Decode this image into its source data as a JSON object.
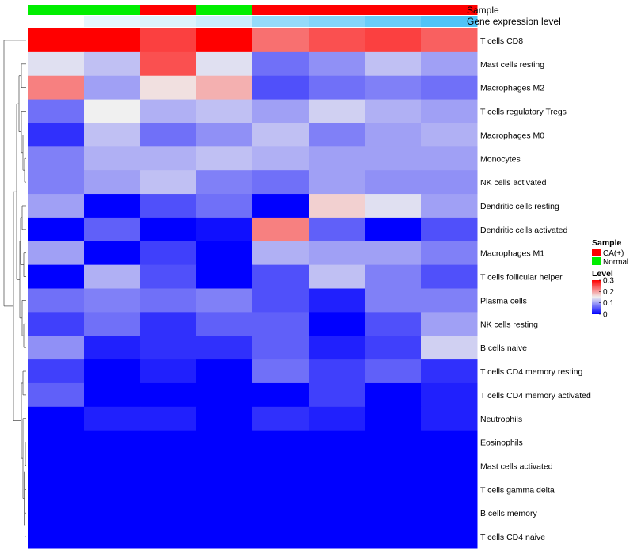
{
  "chart_data": {
    "type": "heatmap",
    "annotation_labels": [
      "Sample",
      "Gene expression level"
    ],
    "sample_groups": [
      "Normal",
      "Normal",
      "CA(+)",
      "Normal",
      "CA(+)",
      "CA(+)",
      "CA(+)",
      "CA(+)"
    ],
    "gene_expression_level": [
      0.0,
      0.15,
      0.2,
      0.3,
      0.6,
      0.7,
      0.85,
      1.0
    ],
    "rows": [
      "T cells CD8",
      "Mast cells resting",
      "Macrophages M2",
      "T cells regulatory  Tregs",
      "Macrophages M0",
      "Monocytes",
      "NK cells activated",
      "Dendritic cells resting",
      "Dendritic cells activated",
      "Macrophages M1",
      "T cells follicular helper",
      "Plasma cells",
      "NK cells resting",
      "B cells naive",
      "T cells CD4 memory resting",
      "T cells CD4 memory activated",
      "Neutrophils",
      "Eosinophils",
      "Mast cells activated",
      "T cells gamma delta",
      "B cells memory",
      "T cells CD4 naive"
    ],
    "values": [
      [
        0.3,
        0.3,
        0.26,
        0.3,
        0.23,
        0.25,
        0.26,
        0.24
      ],
      [
        0.14,
        0.12,
        0.25,
        0.14,
        0.07,
        0.09,
        0.12,
        0.1
      ],
      [
        0.22,
        0.1,
        0.16,
        0.19,
        0.05,
        0.07,
        0.08,
        0.07
      ],
      [
        0.07,
        0.15,
        0.11,
        0.12,
        0.1,
        0.13,
        0.11,
        0.1
      ],
      [
        0.03,
        0.12,
        0.07,
        0.09,
        0.12,
        0.08,
        0.1,
        0.11
      ],
      [
        0.08,
        0.11,
        0.11,
        0.12,
        0.11,
        0.1,
        0.1,
        0.1
      ],
      [
        0.08,
        0.1,
        0.12,
        0.08,
        0.07,
        0.1,
        0.09,
        0.09
      ],
      [
        0.1,
        0.0,
        0.05,
        0.07,
        0.0,
        0.17,
        0.14,
        0.1
      ],
      [
        0.0,
        0.06,
        0.0,
        0.01,
        0.22,
        0.06,
        0.0,
        0.05
      ],
      [
        0.1,
        0.0,
        0.04,
        0.0,
        0.11,
        0.1,
        0.1,
        0.08
      ],
      [
        0.0,
        0.11,
        0.05,
        0.0,
        0.05,
        0.12,
        0.08,
        0.05
      ],
      [
        0.07,
        0.08,
        0.07,
        0.08,
        0.05,
        0.02,
        0.08,
        0.08
      ],
      [
        0.04,
        0.07,
        0.03,
        0.06,
        0.06,
        0.0,
        0.05,
        0.1
      ],
      [
        0.09,
        0.02,
        0.03,
        0.03,
        0.06,
        0.02,
        0.04,
        0.13
      ],
      [
        0.04,
        0.0,
        0.02,
        0.0,
        0.07,
        0.04,
        0.06,
        0.03
      ],
      [
        0.06,
        0.0,
        0.0,
        0.0,
        0.0,
        0.04,
        0.0,
        0.02
      ],
      [
        0.0,
        0.02,
        0.02,
        0.0,
        0.03,
        0.02,
        0.0,
        0.02
      ],
      [
        0.0,
        0.0,
        0.0,
        0.0,
        0.0,
        0.0,
        0.0,
        0.0
      ],
      [
        0.0,
        0.0,
        0.0,
        0.0,
        0.0,
        0.0,
        0.0,
        0.0
      ],
      [
        0.0,
        0.0,
        0.0,
        0.0,
        0.0,
        0.0,
        0.0,
        0.0
      ],
      [
        0.0,
        0.0,
        0.0,
        0.0,
        0.0,
        0.0,
        0.0,
        0.0
      ],
      [
        0.0,
        0.0,
        0.0,
        0.0,
        0.0,
        0.0,
        0.0,
        0.0
      ]
    ],
    "value_range": [
      0,
      0.3
    ],
    "legend": {
      "sample_title": "Sample",
      "sample_entries": [
        {
          "label": "CA(+)",
          "color": "#ff0000"
        },
        {
          "label": "Normal",
          "color": "#00ee00"
        }
      ],
      "level_title": "Level",
      "level_ticks": [
        "0.3",
        "0.2",
        "0.1",
        "0"
      ],
      "level_tick_values": [
        0.3,
        0.2,
        0.1,
        0
      ]
    },
    "colors": {
      "low": "#0000ff",
      "mid": "#f0f0f0",
      "high": "#ff0000",
      "normal": "#00ee00",
      "ca": "#ff0000",
      "expr_low": "#ffffff",
      "expr_high": "#4fc3f7"
    },
    "dendrogram": "rows-clustered-left"
  }
}
